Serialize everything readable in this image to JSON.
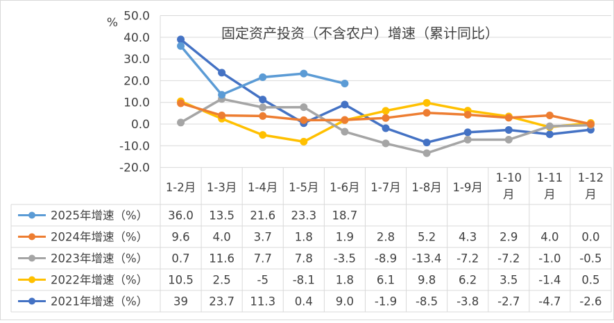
{
  "chart_data": {
    "type": "line",
    "title": "固定资产投资（不含农户）增速（累计同比）",
    "ylabel": "%",
    "ylim": [
      -20,
      50
    ],
    "ytick_step": 10,
    "yticks": [
      "50.0",
      "40.0",
      "30.0",
      "20.0",
      "10.0",
      "0.0",
      "-10.0",
      "-20.0"
    ],
    "grid": true,
    "legend": "data-table",
    "categories": [
      [
        "1-2月"
      ],
      [
        "1-3月"
      ],
      [
        "1-4月"
      ],
      [
        "1-5月"
      ],
      [
        "1-6月"
      ],
      [
        "1-7月"
      ],
      [
        "1-8月"
      ],
      [
        "1-9月"
      ],
      [
        "1-10",
        "月"
      ],
      [
        "1-11",
        "月"
      ],
      [
        "1-12",
        "月"
      ]
    ],
    "series": [
      {
        "name": "2025年增速（%）",
        "color": "#5B9BD5",
        "values": [
          36.0,
          13.5,
          21.6,
          23.3,
          18.7,
          null,
          null,
          null,
          null,
          null,
          null
        ],
        "labels": [
          "36.0",
          "13.5",
          "21.6",
          "23.3",
          "18.7",
          "",
          "",
          "",
          "",
          "",
          ""
        ]
      },
      {
        "name": "2024年增速（%）",
        "color": "#ED7D31",
        "values": [
          9.6,
          4.0,
          3.7,
          1.8,
          1.9,
          2.8,
          5.2,
          4.3,
          2.9,
          4.0,
          0.0
        ],
        "labels": [
          "9.6",
          "4.0",
          "3.7",
          "1.8",
          "1.9",
          "2.8",
          "5.2",
          "4.3",
          "2.9",
          "4.0",
          "0.0"
        ]
      },
      {
        "name": "2023年增速（%）",
        "color": "#A5A5A5",
        "values": [
          0.7,
          11.6,
          7.7,
          7.8,
          -3.5,
          -8.9,
          -13.4,
          -7.2,
          -7.2,
          -1.0,
          -0.5
        ],
        "labels": [
          "0.7",
          "11.6",
          "7.7",
          "7.8",
          "-3.5",
          "-8.9",
          "-13.4",
          "-7.2",
          "-7.2",
          "-1.0",
          "-0.5"
        ]
      },
      {
        "name": "2022年增速（%）",
        "color": "#FFC000",
        "values": [
          10.5,
          2.5,
          -5,
          -8.1,
          1.8,
          6.1,
          9.8,
          6.2,
          3.5,
          -1.4,
          0.5
        ],
        "labels": [
          "10.5",
          "2.5",
          "-5",
          "-8.1",
          "1.8",
          "6.1",
          "9.8",
          "6.2",
          "3.5",
          "-1.4",
          "0.5"
        ]
      },
      {
        "name": "2021年增速（%）",
        "color": "#4472C4",
        "values": [
          39,
          23.7,
          11.3,
          0.4,
          9.0,
          -1.9,
          -8.5,
          -3.8,
          -2.7,
          -4.7,
          -2.6
        ],
        "labels": [
          "39",
          "23.7",
          "11.3",
          "0.4",
          "9.0",
          "-1.9",
          "-8.5",
          "-3.8",
          "-2.7",
          "-4.7",
          "-2.6"
        ]
      }
    ]
  }
}
